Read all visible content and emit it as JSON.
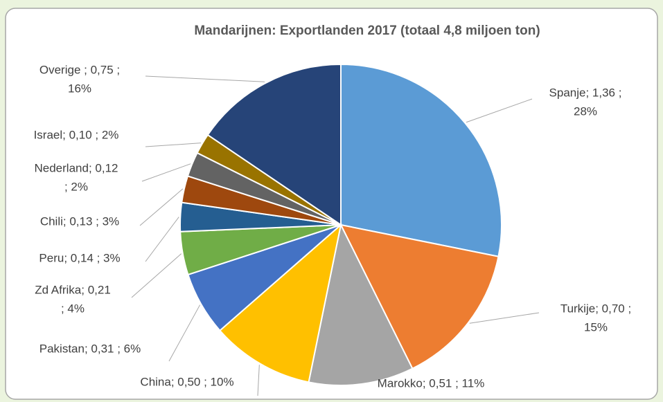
{
  "chart_data": {
    "type": "pie",
    "title": "Mandarijnen: Exportlanden 2017 (totaal 4,8 miljoen ton)",
    "values": [
      1.36,
      0.7,
      0.51,
      0.5,
      0.31,
      0.21,
      0.14,
      0.13,
      0.12,
      0.1,
      0.75
    ],
    "value_labels": [
      [
        "Spanje; 1,36 ;",
        "28%"
      ],
      [
        "Turkije; 0,70 ;",
        "15%"
      ],
      [
        "Marokko; 0,51 ; 11%"
      ],
      [
        "China; 0,50 ; 10%"
      ],
      [
        "Pakistan; 0,31 ; 6%"
      ],
      [
        "Zd Afrika; 0,21",
        "; 4%"
      ],
      [
        "Peru; 0,14 ; 3%"
      ],
      [
        "Chili; 0,13 ; 3%"
      ],
      [
        "Nederland; 0,12",
        "; 2%"
      ],
      [
        "Israel; 0,10 ; 2%"
      ],
      [
        "Overige ; 0,75 ;",
        "16%"
      ]
    ],
    "colors": [
      "#5b9bd5",
      "#ed7d31",
      "#a5a5a5",
      "#ffc000",
      "#4472c4",
      "#70ad47",
      "#255e91",
      "#9e480e",
      "#636363",
      "#997300",
      "#264478"
    ]
  }
}
